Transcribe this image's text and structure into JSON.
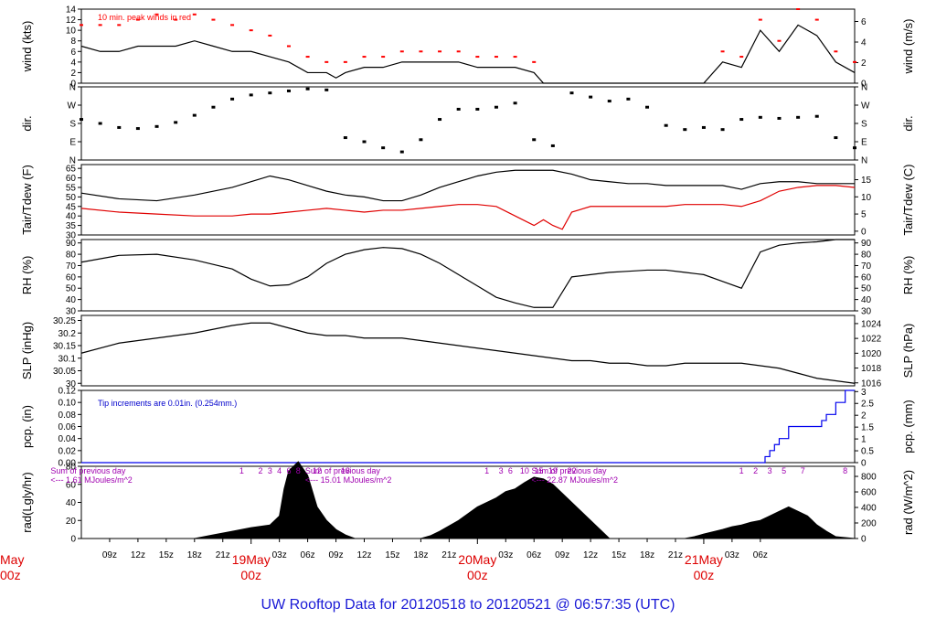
{
  "colors": {
    "peak": "#ff0000",
    "dew": "#e00000",
    "pcp": "#0000ee",
    "note_blue": "#0000cc",
    "rad_note": "#a000b0",
    "day_label": "#dd0000",
    "title": "#1a1ad6",
    "line": "#000000"
  },
  "title": "UW Rooftop Data for 20120518  to  20120521 @ 06:57:35  (UTC)",
  "chart_data": [
    {
      "type": "line",
      "name_key": "wind",
      "ylabel": "wind (kts)",
      "ylabel_right": "wind (m/s)",
      "ylim": [
        0,
        14
      ],
      "yticks": [
        0,
        2,
        4,
        6,
        8,
        10,
        12,
        14
      ],
      "ylim_right": [
        0,
        7.2
      ],
      "yticks_right": [
        0,
        2,
        4,
        6
      ],
      "annotation": "10 min. peak winds in red",
      "series": [
        {
          "role": "mean",
          "x": [
            0,
            2,
            4,
            6,
            8,
            10,
            12,
            14,
            16,
            18,
            20,
            22,
            24,
            26,
            27,
            28,
            30,
            32,
            34,
            36,
            38,
            40,
            42,
            44,
            46,
            48,
            49,
            50,
            51,
            52,
            53,
            54,
            56,
            58,
            60,
            62,
            64,
            66,
            68,
            70,
            72,
            74,
            76,
            78,
            80,
            82
          ],
          "y": [
            7,
            6,
            6,
            7,
            7,
            7,
            8,
            7,
            6,
            6,
            5,
            4,
            2,
            2,
            1,
            2,
            3,
            3,
            4,
            4,
            4,
            4,
            3,
            3,
            3,
            2,
            0,
            0,
            0,
            0,
            0,
            0,
            0,
            0,
            0,
            0,
            0,
            0,
            4,
            3,
            10,
            6,
            11,
            9,
            4,
            2
          ]
        },
        {
          "role": "peak",
          "x": [
            0,
            2,
            4,
            6,
            8,
            10,
            12,
            14,
            16,
            18,
            20,
            22,
            24,
            26,
            28,
            30,
            32,
            34,
            36,
            38,
            40,
            42,
            44,
            46,
            48,
            68,
            70,
            72,
            74,
            76,
            78,
            80,
            82
          ],
          "y": [
            11,
            11,
            11,
            12,
            13,
            12,
            13,
            12,
            11,
            10,
            9,
            7,
            5,
            4,
            4,
            5,
            5,
            6,
            6,
            6,
            6,
            5,
            5,
            5,
            4,
            6,
            5,
            12,
            8,
            14,
            12,
            6,
            4
          ]
        }
      ]
    },
    {
      "type": "scatter",
      "name_key": "dir",
      "ylabel": "dir.",
      "ylabel_right": "dir.",
      "ylim": [
        0,
        360
      ],
      "yticks_labels": [
        "N",
        "E",
        "S",
        "W",
        "N"
      ],
      "yticks": [
        0,
        90,
        180,
        270,
        360
      ],
      "series": [
        {
          "role": "direction",
          "x": [
            0,
            2,
            4,
            6,
            8,
            10,
            12,
            14,
            16,
            18,
            20,
            22,
            24,
            26,
            28,
            30,
            32,
            34,
            36,
            38,
            40,
            42,
            44,
            46,
            48,
            50,
            52,
            54,
            56,
            58,
            60,
            62,
            64,
            66,
            68,
            70,
            72,
            74,
            76,
            78,
            80,
            82
          ],
          "y": [
            200,
            180,
            160,
            155,
            165,
            185,
            220,
            260,
            300,
            320,
            330,
            340,
            350,
            345,
            110,
            90,
            60,
            40,
            100,
            200,
            250,
            250,
            260,
            280,
            100,
            70,
            330,
            310,
            290,
            300,
            260,
            170,
            150,
            160,
            150,
            200,
            210,
            205,
            210,
            215,
            110,
            60
          ]
        }
      ]
    },
    {
      "type": "line",
      "name_key": "temp",
      "ylabel": "Tair/Tdew (F)",
      "ylabel_right": "Tair/Tdew (C)",
      "ylim": [
        30,
        67
      ],
      "yticks": [
        30,
        35,
        40,
        45,
        50,
        55,
        60,
        65
      ],
      "ylim_right": [
        -1.1,
        19.4
      ],
      "yticks_right": [
        0,
        5,
        10,
        15
      ],
      "series": [
        {
          "role": "air",
          "x": [
            0,
            4,
            8,
            12,
            16,
            18,
            20,
            22,
            24,
            26,
            28,
            30,
            32,
            34,
            36,
            38,
            40,
            42,
            44,
            46,
            48,
            50,
            52,
            54,
            56,
            58,
            60,
            62,
            64,
            66,
            68,
            70,
            72,
            74,
            76,
            78,
            80,
            82
          ],
          "y": [
            52,
            49,
            48,
            51,
            55,
            58,
            61,
            59,
            56,
            53,
            51,
            50,
            48,
            48,
            51,
            55,
            58,
            61,
            63,
            64,
            64,
            64,
            62,
            59,
            58,
            57,
            57,
            56,
            56,
            56,
            56,
            54,
            57,
            58,
            58,
            57,
            57,
            57
          ]
        },
        {
          "role": "dew",
          "x": [
            0,
            4,
            8,
            12,
            16,
            18,
            20,
            22,
            24,
            26,
            28,
            30,
            32,
            34,
            36,
            38,
            40,
            42,
            44,
            46,
            48,
            49,
            50,
            51,
            52,
            54,
            56,
            58,
            60,
            62,
            64,
            66,
            68,
            70,
            72,
            74,
            76,
            78,
            80,
            82
          ],
          "y": [
            44,
            42,
            41,
            40,
            40,
            41,
            41,
            42,
            43,
            44,
            43,
            42,
            43,
            43,
            44,
            45,
            46,
            46,
            45,
            40,
            35,
            38,
            35,
            33,
            42,
            45,
            45,
            45,
            45,
            45,
            46,
            46,
            46,
            45,
            48,
            53,
            55,
            56,
            56,
            55
          ]
        }
      ]
    },
    {
      "type": "line",
      "name_key": "rh",
      "ylabel": "RH (%)",
      "ylabel_right": "RH (%)",
      "ylim": [
        30,
        93
      ],
      "yticks": [
        30,
        40,
        50,
        60,
        70,
        80,
        90
      ],
      "ylim_right": [
        30,
        93
      ],
      "yticks_right": [
        30,
        40,
        50,
        60,
        70,
        80,
        90
      ],
      "series": [
        {
          "role": "rh",
          "x": [
            0,
            4,
            8,
            12,
            16,
            18,
            20,
            22,
            24,
            26,
            28,
            30,
            32,
            34,
            36,
            38,
            40,
            42,
            44,
            46,
            48,
            50,
            52,
            54,
            56,
            58,
            60,
            62,
            64,
            66,
            68,
            70,
            72,
            74,
            76,
            78,
            80,
            82
          ],
          "y": [
            73,
            79,
            80,
            75,
            67,
            58,
            52,
            53,
            60,
            72,
            80,
            84,
            86,
            85,
            80,
            72,
            62,
            52,
            42,
            37,
            33,
            33,
            60,
            62,
            64,
            65,
            66,
            66,
            64,
            62,
            56,
            50,
            82,
            88,
            90,
            91,
            93,
            93
          ]
        }
      ]
    },
    {
      "type": "line",
      "name_key": "slp",
      "ylabel": "SLP (inHg)",
      "ylabel_right": "SLP (hPa)",
      "ylim": [
        29.99,
        30.27
      ],
      "yticks": [
        30.0,
        30.05,
        30.1,
        30.15,
        30.2,
        30.25
      ],
      "ylim_right": [
        1015.6,
        1025.1
      ],
      "yticks_right": [
        1016,
        1018,
        1020,
        1022,
        1024
      ],
      "series": [
        {
          "role": "slp",
          "x": [
            0,
            4,
            8,
            12,
            16,
            18,
            20,
            22,
            24,
            26,
            28,
            30,
            32,
            34,
            36,
            38,
            40,
            42,
            44,
            46,
            48,
            50,
            52,
            54,
            56,
            58,
            60,
            62,
            64,
            66,
            68,
            70,
            72,
            74,
            76,
            78,
            80,
            82
          ],
          "y": [
            30.12,
            30.16,
            30.18,
            30.2,
            30.23,
            30.24,
            30.24,
            30.22,
            30.2,
            30.19,
            30.19,
            30.18,
            30.18,
            30.18,
            30.17,
            30.16,
            30.15,
            30.14,
            30.13,
            30.12,
            30.11,
            30.1,
            30.09,
            30.09,
            30.08,
            30.08,
            30.07,
            30.07,
            30.08,
            30.08,
            30.08,
            30.08,
            30.07,
            30.06,
            30.04,
            30.02,
            30.01,
            30.0
          ]
        }
      ]
    },
    {
      "type": "line",
      "name_key": "pcp",
      "ylabel": "pcp. (in)",
      "ylabel_right": "pcp. (mm)",
      "ylim": [
        0,
        0.12
      ],
      "yticks": [
        0,
        0.02,
        0.04,
        0.06,
        0.08,
        0.1,
        0.12
      ],
      "yticks_labels": [
        "0.00",
        "0.02",
        "0.04",
        "0.06",
        "0.08",
        "0.10",
        "0.12"
      ],
      "ylim_right": [
        0,
        3.05
      ],
      "yticks_right": [
        0,
        0.5,
        1,
        1.5,
        2,
        2.5,
        3
      ],
      "annotation": "Tip increments are 0.01in. (0.254mm.)",
      "series": [
        {
          "role": "pcp",
          "x": [
            0,
            72,
            72.5,
            73,
            73.5,
            74,
            75,
            78,
            78.5,
            79,
            80,
            81,
            82
          ],
          "y": [
            0,
            0,
            0.01,
            0.02,
            0.03,
            0.04,
            0.06,
            0.06,
            0.07,
            0.08,
            0.1,
            0.12,
            0.12
          ]
        }
      ]
    },
    {
      "type": "area",
      "name_key": "rad",
      "ylabel": "rad(Lgly/hr)",
      "ylabel_right": "rad (W/m^2)",
      "ylim": [
        0,
        80
      ],
      "yticks": [
        0,
        20,
        40,
        60,
        80
      ],
      "ylim_right": [
        0,
        930
      ],
      "yticks_right": [
        0,
        200,
        400,
        600,
        800
      ],
      "sum_label": "Sum of previous day",
      "sums": [
        {
          "text": "<--- 1.61 MJoules/m^2",
          "x": 1
        },
        {
          "text": "<--- 15.01 MJoules/m^2",
          "x": 28
        },
        {
          "text": "<--- 22.87 MJoules/m^2",
          "x": 52
        }
      ],
      "hour_marks": [
        {
          "x": 17,
          "t": "1"
        },
        {
          "x": 19,
          "t": "2"
        },
        {
          "x": 20,
          "t": "3"
        },
        {
          "x": 21,
          "t": "4"
        },
        {
          "x": 22,
          "t": "6"
        },
        {
          "x": 23,
          "t": "8"
        },
        {
          "x": 25,
          "t": "12"
        },
        {
          "x": 28,
          "t": "18"
        },
        {
          "x": 43,
          "t": "1"
        },
        {
          "x": 44.5,
          "t": "3"
        },
        {
          "x": 45.5,
          "t": "6"
        },
        {
          "x": 47,
          "t": "10"
        },
        {
          "x": 48.5,
          "t": "15"
        },
        {
          "x": 50,
          "t": "19"
        },
        {
          "x": 52,
          "t": "22"
        },
        {
          "x": 70,
          "t": "1"
        },
        {
          "x": 71.5,
          "t": "2"
        },
        {
          "x": 73,
          "t": "3"
        },
        {
          "x": 74.5,
          "t": "5"
        },
        {
          "x": 76.5,
          "t": "7"
        },
        {
          "x": 81,
          "t": "8"
        }
      ],
      "series": [
        {
          "role": "rad",
          "x": [
            0,
            12,
            14,
            16,
            18,
            20,
            21,
            21.5,
            22,
            23,
            24,
            25,
            26,
            27,
            28,
            29,
            36,
            37,
            38,
            40,
            42,
            44,
            45,
            46,
            47,
            48,
            49,
            50,
            51,
            52,
            53,
            54,
            55,
            56,
            64,
            65,
            66,
            68,
            69,
            70,
            71,
            72,
            73,
            74,
            75,
            76,
            77,
            78,
            79,
            80,
            82
          ],
          "y": [
            0,
            0,
            4,
            8,
            12,
            15,
            25,
            55,
            75,
            85,
            70,
            35,
            20,
            10,
            4,
            0,
            0,
            3,
            8,
            20,
            35,
            45,
            52,
            55,
            62,
            68,
            66,
            60,
            50,
            40,
            30,
            20,
            10,
            0,
            0,
            2,
            5,
            10,
            13,
            15,
            18,
            20,
            25,
            30,
            35,
            30,
            25,
            15,
            8,
            2,
            0
          ]
        }
      ]
    }
  ],
  "time_axis": {
    "start_hour": 6,
    "tick_labels": [
      "09z",
      "12z",
      "15z",
      "18z",
      "21z",
      "19May",
      "03z",
      "06z",
      "09z",
      "12z",
      "15z",
      "18z",
      "21z",
      "20May",
      "03z",
      "06z",
      "09z",
      "12z",
      "15z",
      "18z",
      "21z",
      "21May",
      "03z",
      "06z"
    ],
    "day_sub": "00z",
    "edge_day": "May",
    "edge_sub": "00z",
    "day_ticks": [
      {
        "label": "19May",
        "x": 18
      },
      {
        "label": "20May",
        "x": 42
      },
      {
        "label": "21May",
        "x": 66
      }
    ],
    "hour_ticks": [
      {
        "x": 3,
        "label": "09z"
      },
      {
        "x": 6,
        "label": "12z"
      },
      {
        "x": 9,
        "label": "15z"
      },
      {
        "x": 12,
        "label": "18z"
      },
      {
        "x": 15,
        "label": "21z"
      },
      {
        "x": 21,
        "label": "03z"
      },
      {
        "x": 24,
        "label": "06z"
      },
      {
        "x": 27,
        "label": "09z"
      },
      {
        "x": 30,
        "label": "12z"
      },
      {
        "x": 33,
        "label": "15z"
      },
      {
        "x": 36,
        "label": "18z"
      },
      {
        "x": 39,
        "label": "21z"
      },
      {
        "x": 45,
        "label": "03z"
      },
      {
        "x": 48,
        "label": "06z"
      },
      {
        "x": 51,
        "label": "09z"
      },
      {
        "x": 54,
        "label": "12z"
      },
      {
        "x": 57,
        "label": "15z"
      },
      {
        "x": 60,
        "label": "18z"
      },
      {
        "x": 63,
        "label": "21z"
      },
      {
        "x": 69,
        "label": "03z"
      },
      {
        "x": 72,
        "label": "06z"
      }
    ]
  }
}
